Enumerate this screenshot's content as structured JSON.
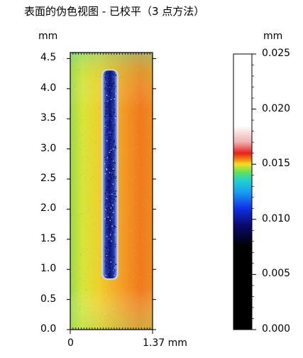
{
  "header": {
    "title": "表面的伪色视图 - 已校平（3 点方法）"
  },
  "chart_data": {
    "type": "heatmap",
    "title": "表面的伪色视图 - 已校平（3 点方法）",
    "x_unit": "mm",
    "y_unit": "mm",
    "x_range": [
      0,
      1.37
    ],
    "y_range": [
      0,
      4.6
    ],
    "x_tick_labels": [
      "0",
      "1.37 mm"
    ],
    "y_tick_labels": [
      "0.0",
      "0.5",
      "1.0",
      "1.5",
      "2.0",
      "2.5",
      "3.0",
      "3.5",
      "4.0",
      "4.5"
    ],
    "y_ticks": [
      0,
      0.5,
      1.0,
      1.5,
      2.0,
      2.5,
      3.0,
      3.5,
      4.0,
      4.5
    ],
    "colorbar": {
      "unit": "mm",
      "range": [
        0.0,
        0.025
      ],
      "tick_labels": [
        "0.000",
        "0.005",
        "0.010",
        "0.015",
        "0.020",
        "0.025"
      ],
      "ticks": [
        0.0,
        0.005,
        0.01,
        0.015,
        0.02,
        0.025
      ]
    },
    "groove": {
      "x_center": 0.66,
      "y_bottom": 0.85,
      "y_top": 4.3
    },
    "colors": {
      "left_band": "#d8e83a",
      "right_band": "#f07a1c",
      "groove": "#1a2a9a"
    }
  }
}
